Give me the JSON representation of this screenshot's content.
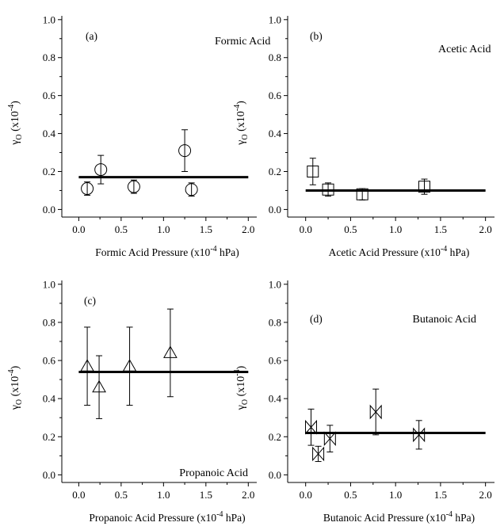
{
  "chart_data": [
    {
      "type": "scatter",
      "panel_label": "(a)",
      "title": "Formic Acid",
      "xlabel": "Formic Acid Pressure (x10",
      "xlabel_exp": "-4",
      "xlabel_unit": " hPa)",
      "ylabel": "γ",
      "ylabel_sub": "O",
      "ylabel_mult": " (x10",
      "ylabel_exp": "-4",
      "ylabel_close": ")",
      "xlim": [
        -0.2,
        2.1
      ],
      "ylim": [
        -0.04,
        1.02
      ],
      "xticks": [
        "0.0",
        "0.5",
        "1.0",
        "1.5",
        "2.0"
      ],
      "yticks": [
        "0.0",
        "0.2",
        "0.4",
        "0.6",
        "0.8",
        "1.0"
      ],
      "marker": "circle",
      "points": [
        {
          "x": 0.1,
          "y": 0.11,
          "err": 0.035
        },
        {
          "x": 0.26,
          "y": 0.21,
          "err": 0.075
        },
        {
          "x": 0.65,
          "y": 0.12,
          "err": 0.035
        },
        {
          "x": 1.25,
          "y": 0.31,
          "err": 0.11
        },
        {
          "x": 1.33,
          "y": 0.105,
          "err": 0.035
        }
      ],
      "fit": {
        "y": 0.17,
        "x": [
          0.0,
          2.0
        ]
      }
    },
    {
      "type": "scatter",
      "panel_label": "(b)",
      "title": "Acetic Acid",
      "xlabel": "Acetic Acid Pressure (x10",
      "xlabel_exp": "-4",
      "xlabel_unit": " hPa)",
      "ylabel": "γ",
      "ylabel_sub": "O",
      "ylabel_mult": " (x10",
      "ylabel_exp": "-4",
      "ylabel_close": ")",
      "xlim": [
        -0.2,
        2.1
      ],
      "ylim": [
        -0.04,
        1.02
      ],
      "xticks": [
        "0.0",
        "0.5",
        "1.0",
        "1.5",
        "2.0"
      ],
      "yticks": [
        "0.0",
        "0.2",
        "0.4",
        "0.6",
        "0.8",
        "1.0"
      ],
      "marker": "square",
      "points": [
        {
          "x": 0.08,
          "y": 0.2,
          "err": 0.07
        },
        {
          "x": 0.25,
          "y": 0.105,
          "err": 0.035
        },
        {
          "x": 0.63,
          "y": 0.08,
          "err": 0.03
        },
        {
          "x": 1.32,
          "y": 0.12,
          "err": 0.04
        }
      ],
      "fit": {
        "y": 0.1,
        "x": [
          0.0,
          2.0
        ]
      }
    },
    {
      "type": "scatter",
      "panel_label": "(c)",
      "title": "Propanoic Acid",
      "xlabel": "Propanoic  Acid Pressure (x10",
      "xlabel_exp": "-4",
      "xlabel_unit": " hPa)",
      "ylabel": "γ",
      "ylabel_sub": "O",
      "ylabel_mult": " (x10",
      "ylabel_exp": "-4",
      "ylabel_close": ")",
      "xlim": [
        -0.2,
        2.1
      ],
      "ylim": [
        -0.04,
        1.02
      ],
      "xticks": [
        "0.0",
        "0.5",
        "1.0",
        "1.5",
        "2.0"
      ],
      "yticks": [
        "0.0",
        "0.2",
        "0.4",
        "0.6",
        "0.8",
        "1.0"
      ],
      "marker": "triangle",
      "points": [
        {
          "x": 0.1,
          "y": 0.57,
          "err": 0.205
        },
        {
          "x": 0.24,
          "y": 0.46,
          "err": 0.165
        },
        {
          "x": 0.6,
          "y": 0.57,
          "err": 0.205
        },
        {
          "x": 1.08,
          "y": 0.64,
          "err": 0.23
        }
      ],
      "fit": {
        "y": 0.54,
        "x": [
          0.0,
          2.0
        ]
      }
    },
    {
      "type": "scatter",
      "panel_label": "(d)",
      "title": "Butanoic Acid",
      "xlabel": "Butanoic Acid Pressure (x10",
      "xlabel_exp": "-4",
      "xlabel_unit": " hPa)",
      "ylabel": "γ",
      "ylabel_sub": "O",
      "ylabel_mult": " (x10",
      "ylabel_exp": "-4",
      "ylabel_close": ")",
      "xlim": [
        -0.2,
        2.1
      ],
      "ylim": [
        -0.04,
        1.02
      ],
      "xticks": [
        "0.0",
        "0.5",
        "1.0",
        "1.5",
        "2.0"
      ],
      "yticks": [
        "0.0",
        "0.2",
        "0.4",
        "0.6",
        "0.8",
        "1.0"
      ],
      "marker": "bowtie",
      "points": [
        {
          "x": 0.06,
          "y": 0.25,
          "err": 0.095
        },
        {
          "x": 0.14,
          "y": 0.11,
          "err": 0.04
        },
        {
          "x": 0.27,
          "y": 0.19,
          "err": 0.07
        },
        {
          "x": 0.78,
          "y": 0.33,
          "err": 0.12
        },
        {
          "x": 1.26,
          "y": 0.21,
          "err": 0.075
        }
      ],
      "fit": {
        "y": 0.22,
        "x": [
          0.0,
          2.0
        ]
      }
    }
  ]
}
